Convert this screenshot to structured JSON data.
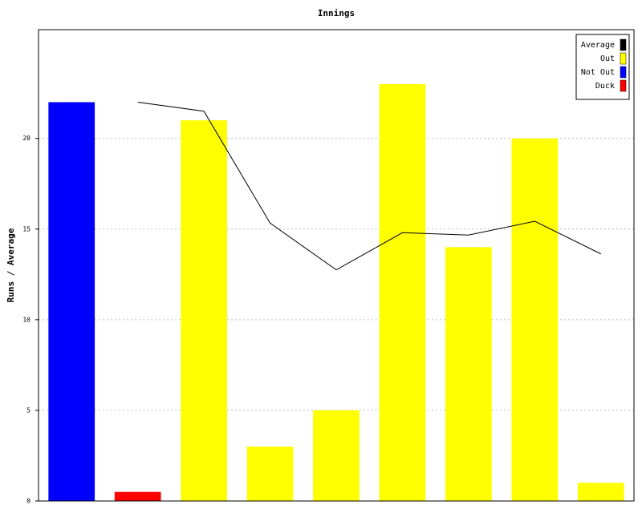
{
  "chart_data": {
    "type": "bar",
    "title": "Innings",
    "y_label": "Runs / Average",
    "categories": [
      null,
      null,
      null,
      null,
      null,
      null,
      null,
      null,
      null
    ],
    "series": [
      {
        "name": "Average",
        "type": "line",
        "color": "#000000",
        "values": [
          null,
          22,
          21.5,
          15.33,
          12.75,
          14.8,
          14.67,
          15.43,
          13.63
        ]
      },
      {
        "name": "Out",
        "type": "bar",
        "color": "#ffff00",
        "values": [
          null,
          null,
          21,
          3,
          5,
          23,
          14,
          20,
          1
        ]
      },
      {
        "name": "Not Out",
        "type": "bar",
        "color": "#0000ff",
        "values": [
          22,
          null,
          null,
          null,
          null,
          null,
          null,
          null,
          null
        ]
      },
      {
        "name": "Duck",
        "type": "bar",
        "color": "#ff0000",
        "values": [
          null,
          0.5,
          null,
          null,
          null,
          null,
          null,
          null,
          null
        ]
      }
    ],
    "ylim": [
      0,
      26
    ],
    "yticks": [
      0,
      5,
      10,
      15,
      20
    ],
    "grid": true,
    "legend": "top-right"
  }
}
